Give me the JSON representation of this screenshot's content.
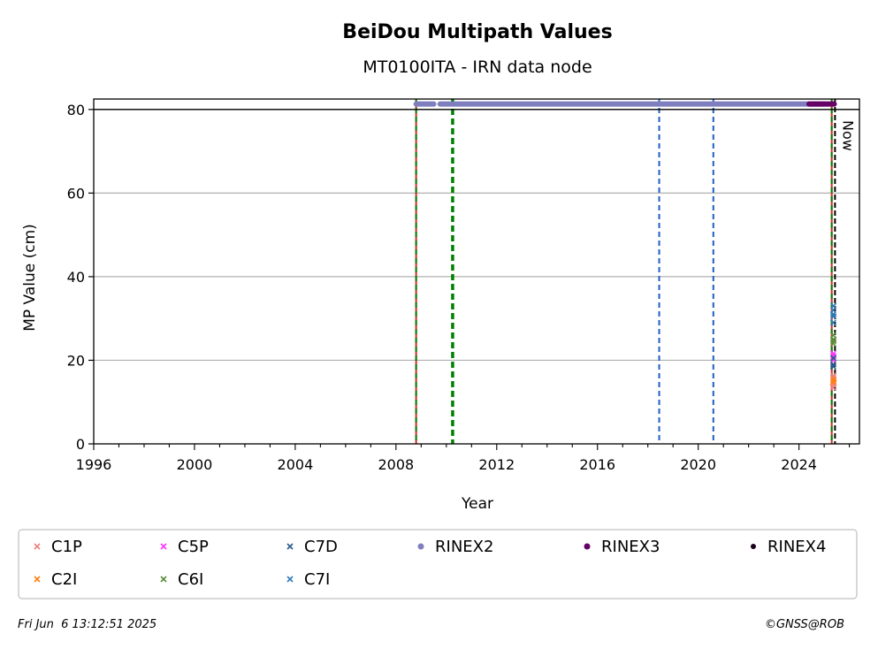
{
  "chart_data": {
    "type": "scatter",
    "title": "BeiDou Multipath Values",
    "subtitle": "MT0100ITA - IRN data node",
    "xlabel": "Year",
    "ylabel": "MP Value (cm)",
    "xlim": [
      1996,
      2026.4
    ],
    "ylim": [
      0,
      82.5
    ],
    "x_ticks": [
      1996,
      2000,
      2004,
      2008,
      2012,
      2016,
      2020,
      2024
    ],
    "y_ticks": [
      0,
      20,
      40,
      60,
      80
    ],
    "grid": "horizontal",
    "legend_position": "bottom",
    "now_label": "Now",
    "now_year": 2025.43,
    "reference_line_y": 80,
    "vertical_lines": [
      {
        "x": 2008.8,
        "color": "#d62728",
        "style": "solid"
      },
      {
        "x": 2008.8,
        "color": "#008000",
        "style": "dashed"
      },
      {
        "x": 2010.25,
        "color": "#008000",
        "style": "dashed-thick"
      },
      {
        "x": 2018.45,
        "color": "#1f5fbf",
        "style": "dashed"
      },
      {
        "x": 2020.6,
        "color": "#1f5fbf",
        "style": "dashed"
      },
      {
        "x": 2025.3,
        "color": "#d62728",
        "style": "solid"
      },
      {
        "x": 2025.3,
        "color": "#008000",
        "style": "dashed"
      }
    ],
    "series": [
      {
        "name": "C1P",
        "color": "#f08080",
        "marker": "x",
        "points": [
          [
            2025.35,
            13.5
          ],
          [
            2025.36,
            14.2
          ],
          [
            2025.37,
            15.0
          ],
          [
            2025.36,
            15.8
          ],
          [
            2025.38,
            14.6
          ],
          [
            2025.37,
            16.3
          ]
        ]
      },
      {
        "name": "C2I",
        "color": "#ff7f0e",
        "marker": "x",
        "points": [
          [
            2025.36,
            14.8
          ],
          [
            2025.37,
            15.4
          ]
        ]
      },
      {
        "name": "C5P",
        "color": "#ff33ff",
        "marker": "x",
        "points": [
          [
            2025.36,
            20.0
          ],
          [
            2025.37,
            21.0
          ],
          [
            2025.36,
            21.6
          ]
        ]
      },
      {
        "name": "C6I",
        "color": "#5b8c3a",
        "marker": "x",
        "points": [
          [
            2025.36,
            24.0
          ],
          [
            2025.37,
            25.0
          ],
          [
            2025.36,
            26.0
          ],
          [
            2025.37,
            24.6
          ]
        ]
      },
      {
        "name": "C7D",
        "color": "#2a5a8c",
        "marker": "x",
        "points": [
          [
            2025.36,
            19.0
          ],
          [
            2025.37,
            20.5
          ],
          [
            2025.36,
            18.5
          ]
        ]
      },
      {
        "name": "C7I",
        "color": "#2f7ab8",
        "marker": "x",
        "points": [
          [
            2025.36,
            29.0
          ],
          [
            2025.37,
            30.5
          ],
          [
            2025.36,
            32.0
          ],
          [
            2025.37,
            33.0
          ],
          [
            2025.36,
            31.0
          ]
        ]
      },
      {
        "name": "RINEX2",
        "color": "#7f7fbf",
        "marker": "dot",
        "line": {
          "x_start": 2008.8,
          "x_end": 2025.0,
          "y": 81.3,
          "gap": [
            2009.5,
            2009.75
          ]
        }
      },
      {
        "name": "RINEX3",
        "color": "#660066",
        "marker": "dot",
        "line": {
          "x_start": 2024.4,
          "x_end": 2025.4,
          "y": 81.3
        }
      },
      {
        "name": "RINEX4",
        "color": "#1a001a",
        "marker": "dot",
        "points": []
      }
    ],
    "legend": [
      "C1P",
      "C5P",
      "C7D",
      "RINEX2",
      "RINEX3",
      "RINEX4",
      "C2I",
      "C6I",
      "C7I"
    ]
  },
  "footer": {
    "timestamp": "Fri Jun  6 13:12:51 2025",
    "credit": "©GNSS@ROB"
  }
}
